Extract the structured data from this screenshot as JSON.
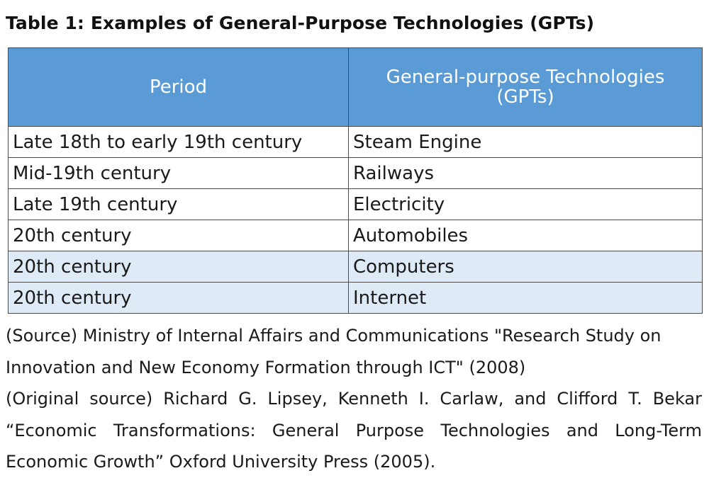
{
  "title": "Table 1: Examples of General-Purpose Technologies (GPTs)",
  "table": {
    "headers": {
      "period": "Period",
      "gpt_line1": "General-purpose Technologies",
      "gpt_line2": "(GPTs)"
    },
    "rows": [
      {
        "period": "Late 18th to early 19th century",
        "gpt": "Steam Engine"
      },
      {
        "period": "Mid-19th century",
        "gpt": "Railways"
      },
      {
        "period": "Late 19th century",
        "gpt": "Electricity"
      },
      {
        "period": "20th century",
        "gpt": "Automobiles"
      },
      {
        "period": "20th century",
        "gpt": "Computers"
      },
      {
        "period": "20th century",
        "gpt": "Internet"
      }
    ],
    "header_color": "#5b9bd5",
    "shaded_row_color": "#deebf7"
  },
  "notes": {
    "source": "(Source) Ministry of Internal Affairs and Communications \"Research Study on Innovation and New Economy Formation through  ICT\" (2008)",
    "original_source": "(Original source) Richard G. Lipsey, Kenneth I. Carlaw, and Clifford T. Bekar “Economic Transformations: General Purpose Technologies and Long-Term Economic Growth” Oxford University Press (2005)."
  }
}
